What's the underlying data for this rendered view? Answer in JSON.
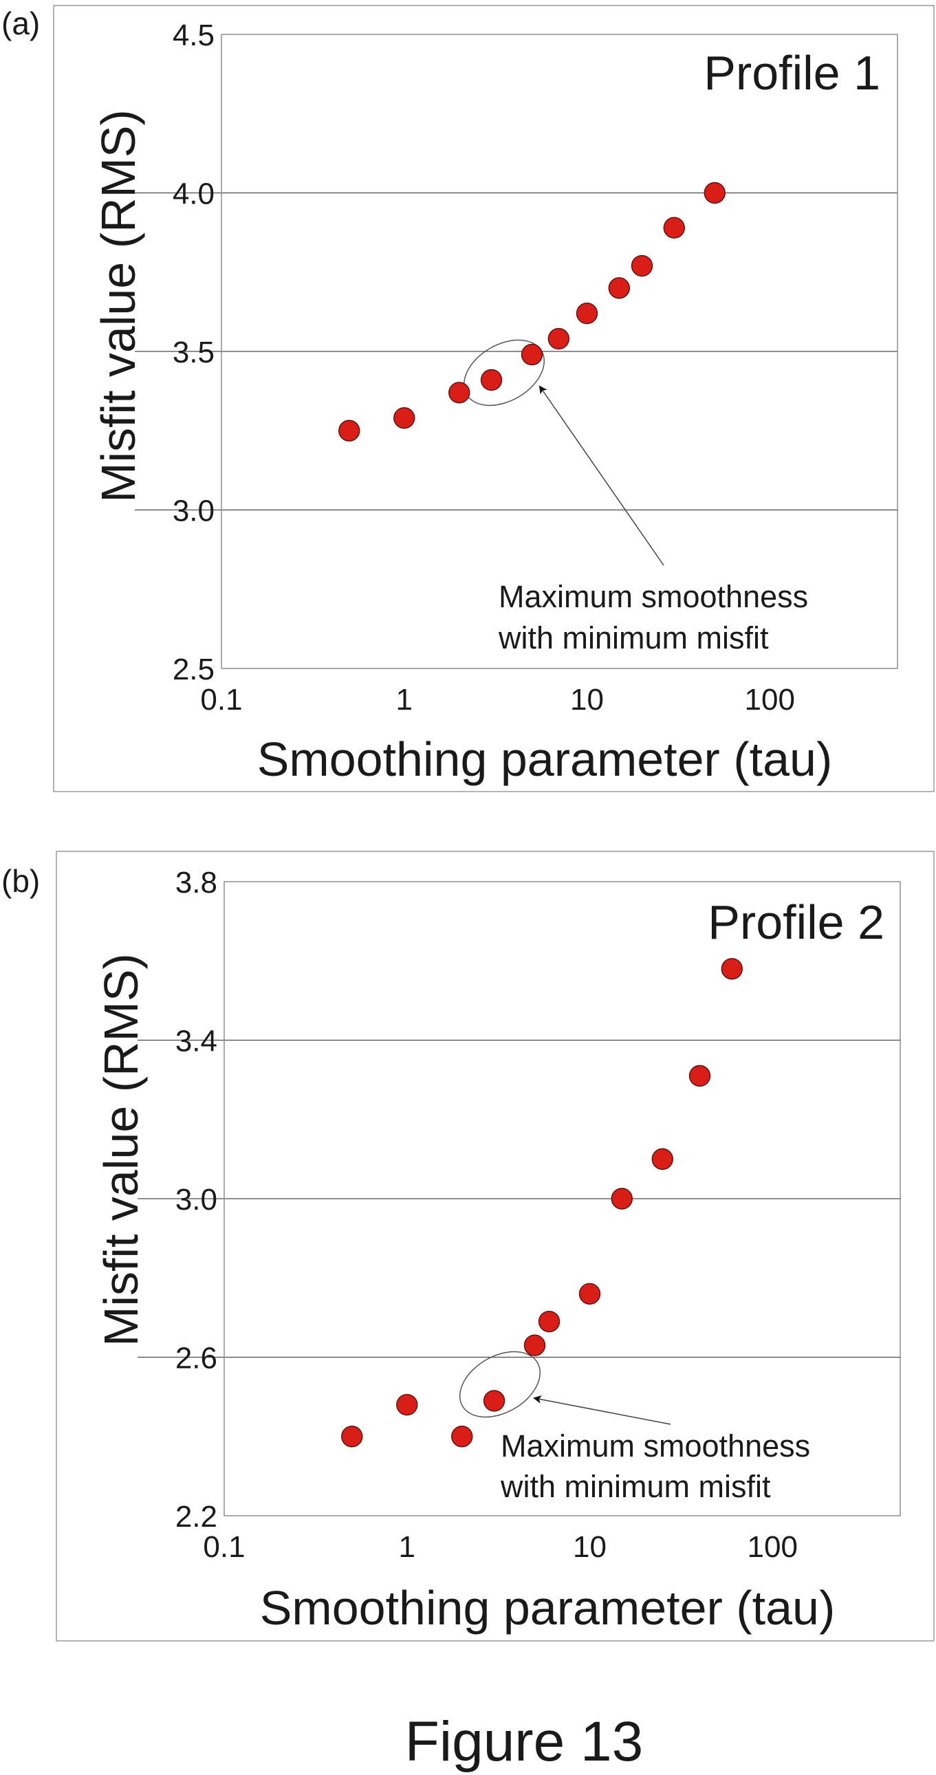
{
  "figure_caption": "Figure 13",
  "chart_data": [
    {
      "type": "scatter",
      "panel_label": "(a)",
      "title": "Profile 1",
      "xlabel": "Smoothing parameter (tau)",
      "ylabel": "Misfit value (RMS)",
      "x_scale": "log",
      "xlim": [
        0.1,
        500
      ],
      "ylim": [
        2.5,
        4.5
      ],
      "x_ticks": [
        0.1,
        1,
        10,
        100
      ],
      "x_tick_labels": [
        "0.1",
        "1",
        "10",
        "100"
      ],
      "y_ticks": [
        2.5,
        3.0,
        3.5,
        4.0,
        4.5
      ],
      "y_tick_labels": [
        "2.5",
        "3.0",
        "3.5",
        "4.0",
        "4.5"
      ],
      "grid_y": [
        3.0,
        3.5,
        4.0
      ],
      "marker_color": "#d91e18",
      "points": [
        {
          "x": 0.5,
          "y": 3.25
        },
        {
          "x": 1,
          "y": 3.29
        },
        {
          "x": 2,
          "y": 3.37
        },
        {
          "x": 3,
          "y": 3.41
        },
        {
          "x": 5,
          "y": 3.49
        },
        {
          "x": 7,
          "y": 3.54
        },
        {
          "x": 10,
          "y": 3.62
        },
        {
          "x": 15,
          "y": 3.7
        },
        {
          "x": 20,
          "y": 3.77
        },
        {
          "x": 30,
          "y": 3.89
        },
        {
          "x": 50,
          "y": 4.0
        }
      ],
      "annotation": {
        "lines": [
          "Maximum smoothness",
          "with minimum misfit"
        ],
        "highlight_points": [
          3,
          5
        ]
      }
    },
    {
      "type": "scatter",
      "panel_label": "(b)",
      "title": "Profile 2",
      "xlabel": "Smoothing parameter (tau)",
      "ylabel": "Misfit value (RMS)",
      "x_scale": "log",
      "xlim": [
        0.1,
        500
      ],
      "ylim": [
        2.2,
        3.8
      ],
      "x_ticks": [
        0.1,
        1,
        10,
        100
      ],
      "x_tick_labels": [
        "0.1",
        "1",
        "10",
        "100"
      ],
      "y_ticks": [
        2.2,
        2.6,
        3.0,
        3.4,
        3.8
      ],
      "y_tick_labels": [
        "2.2",
        "2.6",
        "3.0",
        "3.4",
        "3.8"
      ],
      "grid_y": [
        2.6,
        3.0,
        3.4
      ],
      "marker_color": "#d91e18",
      "points": [
        {
          "x": 0.5,
          "y": 2.4
        },
        {
          "x": 1,
          "y": 2.48
        },
        {
          "x": 2,
          "y": 2.4
        },
        {
          "x": 3,
          "y": 2.49
        },
        {
          "x": 5,
          "y": 2.63
        },
        {
          "x": 6,
          "y": 2.69
        },
        {
          "x": 10,
          "y": 2.76
        },
        {
          "x": 15,
          "y": 3.0
        },
        {
          "x": 25,
          "y": 3.1
        },
        {
          "x": 40,
          "y": 3.31
        },
        {
          "x": 60,
          "y": 3.58
        }
      ],
      "annotation": {
        "lines": [
          "Maximum smoothness",
          "with minimum misfit"
        ],
        "highlight_points": [
          3
        ]
      }
    }
  ]
}
